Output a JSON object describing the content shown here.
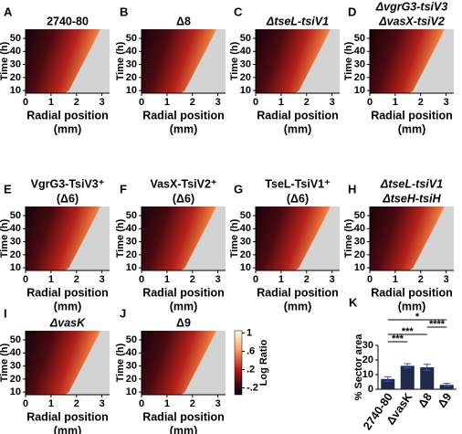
{
  "heatmap_axes": {
    "ylabel": "Time (h)",
    "xlabel": [
      "Radial position",
      "(mm)"
    ],
    "xlim": [
      0,
      3.3
    ],
    "ylim": [
      8,
      57
    ],
    "xticks": [
      0,
      1,
      2,
      3
    ],
    "yticks": [
      10,
      20,
      30,
      40,
      50
    ]
  },
  "colorbar": {
    "label": "Log Ratio",
    "lim": [
      -0.35,
      1.05
    ],
    "ticks": [
      {
        "value": 1,
        "label": "1"
      },
      {
        "value": 0.6,
        "label": ".6"
      },
      {
        "value": 0.2,
        "label": ".2"
      },
      {
        "value": -0.2,
        "label": "-.2"
      }
    ]
  },
  "panels": [
    {
      "letter": "A",
      "title": [
        "2740-80"
      ],
      "italic": false
    },
    {
      "letter": "B",
      "title": [
        "Δ8"
      ],
      "italic": false
    },
    {
      "letter": "C",
      "title": [
        "ΔtseL-tsiV1"
      ],
      "italic": true
    },
    {
      "letter": "D",
      "title": [
        "ΔvgrG3-tsiV3",
        "ΔvasX-tsiV2"
      ],
      "italic": true,
      "colorbar": true
    },
    {
      "letter": "E",
      "title": [
        "VgrG3-TsiV3⁺",
        "(Δ6)"
      ],
      "italic": false
    },
    {
      "letter": "F",
      "title": [
        "VasX-TsiV2⁺",
        "(Δ6)"
      ],
      "italic": false
    },
    {
      "letter": "G",
      "title": [
        "TseL-TsiV1⁺",
        "(Δ6)"
      ],
      "italic": false
    },
    {
      "letter": "H",
      "title": [
        "ΔtseL-tsiV1",
        "ΔtseH-tsiH"
      ],
      "italic": true,
      "colorbar": true
    },
    {
      "letter": "I",
      "title": [
        "ΔvasK"
      ],
      "italic": true
    },
    {
      "letter": "J",
      "title": [
        "Δ9"
      ],
      "italic": false,
      "colorbar": true
    }
  ],
  "chart_data": {
    "type": "bar",
    "letter": "K",
    "ylabel": "% Sector area",
    "categories": [
      "2740-80",
      "ΔvasK",
      "Δ8",
      "Δ9"
    ],
    "values": [
      7,
      16,
      15,
      3
    ],
    "errors": [
      1.5,
      1.5,
      2,
      1
    ],
    "ylim": [
      0,
      30
    ],
    "yticks": [
      0,
      10,
      20,
      30
    ],
    "color": "#1f2a4a",
    "significance": [
      {
        "label": "***",
        "between": [
          0,
          1
        ]
      },
      {
        "label": "***",
        "between": [
          0,
          2
        ]
      },
      {
        "label": "****",
        "between": [
          2,
          3
        ]
      },
      {
        "label": "*",
        "between": [
          0,
          3
        ]
      }
    ]
  }
}
